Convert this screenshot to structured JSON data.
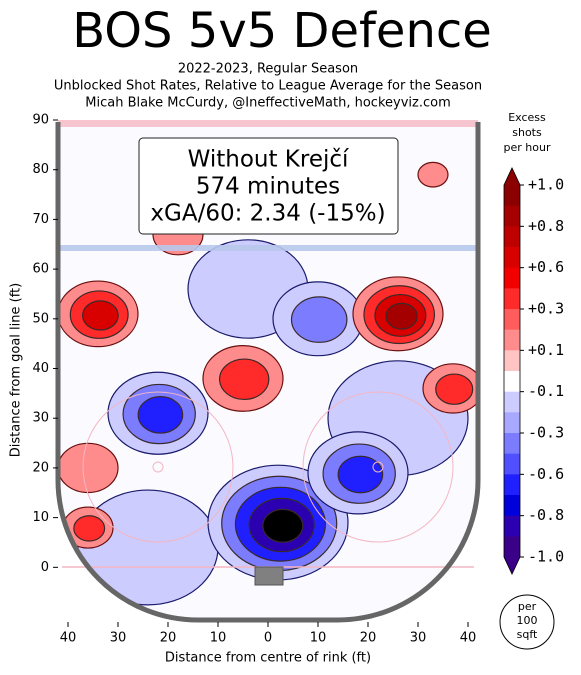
{
  "chart_data": {
    "type": "contour",
    "title": "BOS 5v5 Defence",
    "subtitle": [
      "2022-2023, Regular Season",
      "Unblocked Shot Rates, Relative to League Average for the Season",
      "Micah Blake McCurdy, @IneffectiveMath, hockeyviz.com"
    ],
    "annotation": [
      "Without Krejčí",
      "574 minutes",
      "xGA/60: 2.34 (-15%)"
    ],
    "x_label": "Distance from centre of rink (ft)",
    "y_label": "Distance from goal line (ft)",
    "xlim": [
      -42,
      42
    ],
    "xticks": [
      {
        "value": -40,
        "label": "40"
      },
      {
        "value": -30,
        "label": "30"
      },
      {
        "value": -20,
        "label": "20"
      },
      {
        "value": -10,
        "label": "10"
      },
      0,
      10,
      20,
      30,
      40
    ],
    "ylim": [
      -11,
      90
    ],
    "yticks": [
      0,
      10,
      20,
      30,
      40,
      50,
      60,
      70,
      80,
      90
    ],
    "colorbar_label": [
      "Excess",
      "shots",
      "per hour"
    ],
    "colorbar_ticks": [
      {
        "value": 1.0,
        "label": "+1.0"
      },
      {
        "value": 0.8,
        "label": "+0.8"
      },
      {
        "value": 0.6,
        "label": "+0.6"
      },
      {
        "value": 0.3,
        "label": "+0.3"
      },
      {
        "value": 0.1,
        "label": "+0.1"
      },
      {
        "value": -0.1,
        "label": "-0.1"
      },
      {
        "value": -0.3,
        "label": "-0.3"
      },
      {
        "value": -0.6,
        "label": "-0.6"
      },
      {
        "value": -0.8,
        "label": "-0.8"
      },
      {
        "value": -1.0,
        "label": "-1.0"
      }
    ],
    "colorbar_colors": [
      "#8b0000",
      "#a40000",
      "#bf0000",
      "#d90000",
      "#f20000",
      "#ff2a2a",
      "#ff5c5c",
      "#ff8c8c",
      "#ffc4c4",
      "#ffffff",
      "#ccccff",
      "#a8a8ff",
      "#7c7cff",
      "#5050ff",
      "#2020ff",
      "#0000dc",
      "#2a00b0",
      "#3a0088"
    ],
    "unit_badge": [
      "per",
      "100",
      "sqft"
    ],
    "hotspots": [
      {
        "x": -4,
        "y": 56,
        "r": 12,
        "level": -0.1
      },
      {
        "x": 10,
        "y": 50,
        "r": 9,
        "level": -0.3
      },
      {
        "x": 26,
        "y": 30,
        "r": 14,
        "level": -0.1
      },
      {
        "x": -24,
        "y": 4,
        "r": 14,
        "level": -0.1
      },
      {
        "x": -22,
        "y": 31,
        "r": 10,
        "level": -0.6
      },
      {
        "x": 2,
        "y": 9,
        "r": 14,
        "level": -1.0
      },
      {
        "x": 18,
        "y": 19,
        "r": 10,
        "level": -0.6
      },
      {
        "x": -34,
        "y": 51,
        "r": 8,
        "level": 0.6
      },
      {
        "x": 26,
        "y": 51,
        "r": 9,
        "level": 0.8
      },
      {
        "x": -5,
        "y": 38,
        "r": 8,
        "level": 0.3
      },
      {
        "x": -18,
        "y": 67,
        "r": 5,
        "level": 0.1
      },
      {
        "x": 33,
        "y": 79,
        "r": 3,
        "level": 0.1
      },
      {
        "x": 37,
        "y": 36,
        "r": 6,
        "level": 0.3
      },
      {
        "x": -36,
        "y": 20,
        "r": 6,
        "level": 0.1
      },
      {
        "x": -36,
        "y": 8,
        "r": 5,
        "level": 0.3
      }
    ]
  }
}
